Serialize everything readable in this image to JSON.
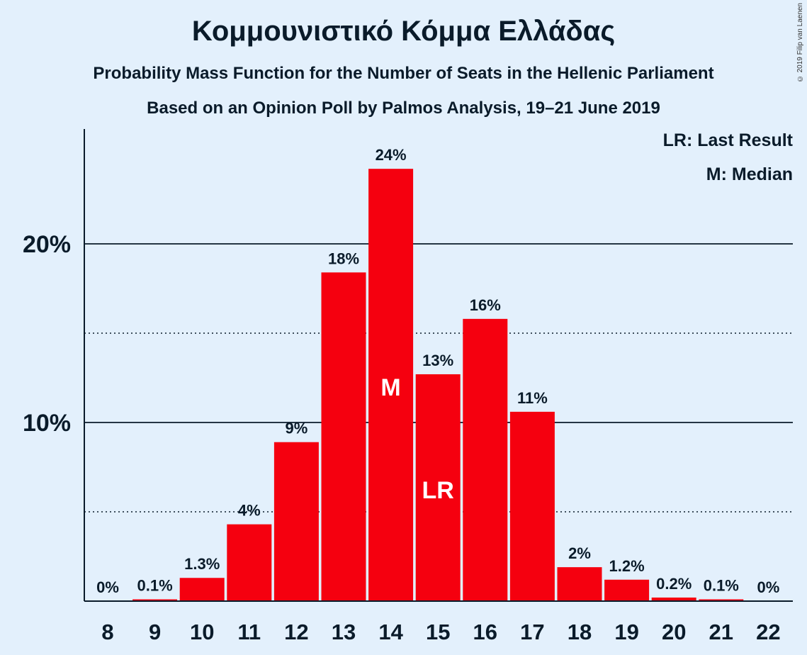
{
  "header": {
    "title": "Κομμουνιστικό Κόμμα Ελλάδας",
    "subtitle": "Probability Mass Function for the Number of Seats in the Hellenic Parliament",
    "subtitle2": "Based on an Opinion Poll by Palmos Analysis, 19–21 June 2019",
    "copyright": "© 2019 Filip van Laenen"
  },
  "legend": {
    "last_result": "LR: Last Result",
    "median": "M: Median"
  },
  "colors": {
    "bar": "#f5000f",
    "background": "#e3f0fc",
    "text": "#0a1b2a"
  },
  "chart_data": {
    "type": "bar",
    "categories": [
      "8",
      "9",
      "10",
      "11",
      "12",
      "13",
      "14",
      "15",
      "16",
      "17",
      "18",
      "19",
      "20",
      "21",
      "22"
    ],
    "values": [
      0,
      0.1,
      1.3,
      4.3,
      8.9,
      18.4,
      24.2,
      12.7,
      15.8,
      10.6,
      1.9,
      1.2,
      0.2,
      0.1,
      0
    ],
    "data_labels": [
      "0%",
      "0.1%",
      "1.3%",
      "4%",
      "9%",
      "18%",
      "24%",
      "13%",
      "16%",
      "11%",
      "2%",
      "1.2%",
      "0.2%",
      "0.1%",
      "0%"
    ],
    "y_ticks": [
      {
        "value": 10,
        "label": "10%"
      },
      {
        "value": 20,
        "label": "20%"
      }
    ],
    "minor_gridlines": [
      5,
      15
    ],
    "ylim": [
      0,
      26.4
    ],
    "median": {
      "category": "14",
      "label": "M"
    },
    "last_result": {
      "category": "15",
      "label": "LR"
    },
    "grid": true,
    "legend_position": "top-right"
  }
}
